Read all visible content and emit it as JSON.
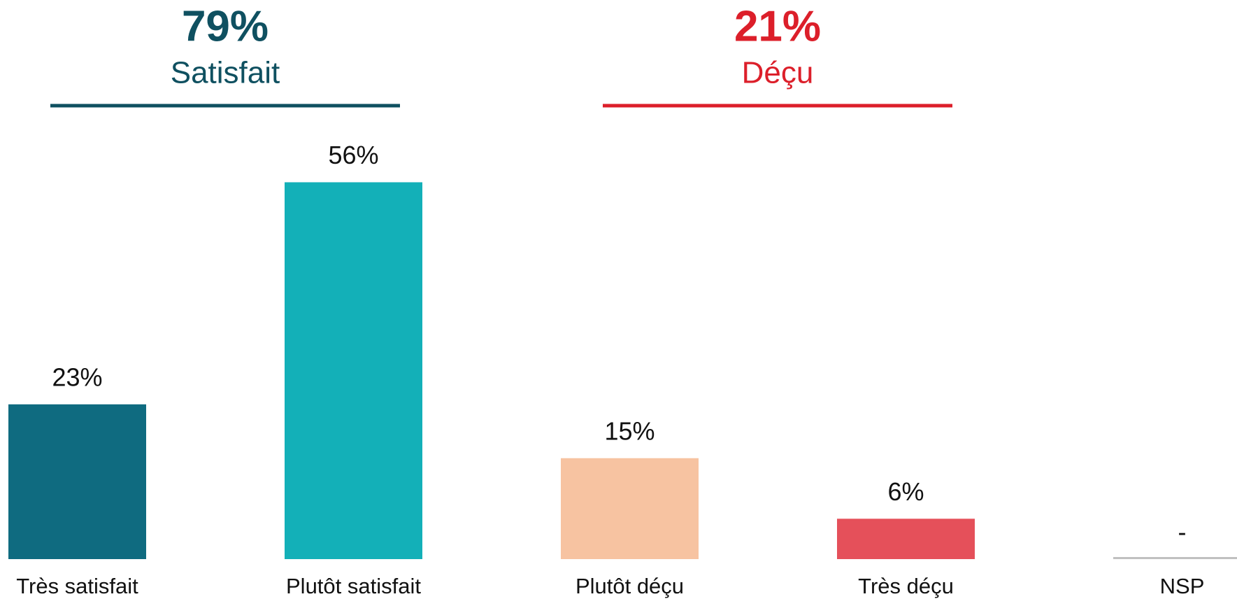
{
  "chart_data": {
    "type": "bar",
    "categories": [
      "Très satisfait",
      "Plutôt satisfait",
      "Plutôt déçu",
      "Très déçu",
      "NSP"
    ],
    "values": [
      23,
      56,
      15,
      6,
      0
    ],
    "value_labels": [
      "23%",
      "56%",
      "15%",
      "6%",
      "-"
    ],
    "colors": [
      "#0f6b80",
      "#13b0b8",
      "#f7c3a1",
      "#e5505a",
      "#c0c0c0"
    ],
    "ylim": [
      0,
      60
    ],
    "groups": {
      "names": [
        "Satisfait",
        "Déçu"
      ],
      "values": [
        79,
        21
      ],
      "value_labels": [
        "79%",
        "21%"
      ],
      "colors": [
        "#0f5060",
        "#dc1f2a"
      ]
    }
  }
}
